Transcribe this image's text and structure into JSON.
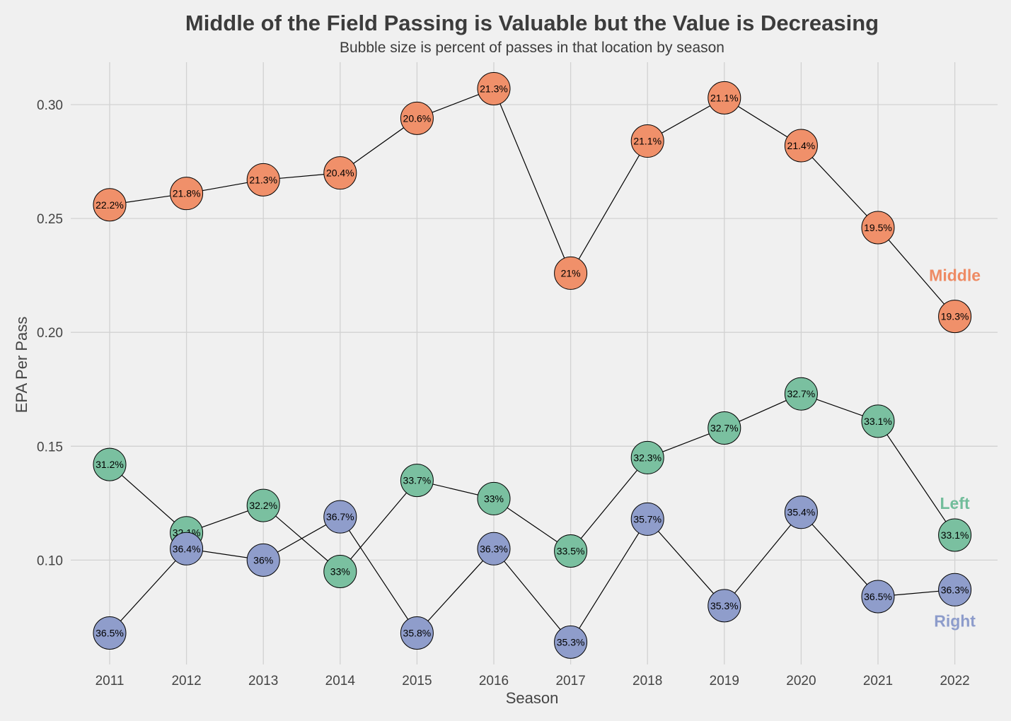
{
  "chart_data": {
    "type": "scatter",
    "title": "Middle of the Field Passing is Valuable but the Value is Decreasing",
    "subtitle": "Bubble size is percent of passes in that location by season",
    "xlabel": "Season",
    "ylabel": "EPA Per Pass",
    "ylim": [
      0.055,
      0.32
    ],
    "grid": true,
    "categories": [
      "2011",
      "2012",
      "2013",
      "2014",
      "2015",
      "2016",
      "2017",
      "2018",
      "2019",
      "2020",
      "2021",
      "2022"
    ],
    "y_ticks": [
      0.1,
      0.15,
      0.2,
      0.25,
      0.3
    ],
    "y_tick_labels": [
      "0.10",
      "0.15",
      "0.20",
      "0.25",
      "0.30"
    ],
    "series": [
      {
        "name": "Middle",
        "color": "#f0906a",
        "label_color": "#ee8a63",
        "values": [
          0.256,
          0.261,
          0.267,
          0.27,
          0.294,
          0.307,
          0.226,
          0.284,
          0.303,
          0.282,
          0.246,
          0.207
        ],
        "labels": [
          "22.2%",
          "21.8%",
          "21.3%",
          "20.4%",
          "20.6%",
          "21.3%",
          "21%",
          "21.1%",
          "21.1%",
          "21.4%",
          "19.5%",
          "19.3%"
        ]
      },
      {
        "name": "Left",
        "color": "#7ac0a0",
        "label_color": "#72bd9b",
        "values": [
          0.142,
          0.112,
          0.124,
          0.095,
          0.135,
          0.127,
          0.104,
          0.145,
          0.158,
          0.173,
          0.161,
          0.111
        ],
        "labels": [
          "31.2%",
          "32.1%",
          "32.2%",
          "33%",
          "33.7%",
          "33%",
          "33.5%",
          "32.3%",
          "32.7%",
          "32.7%",
          "33.1%",
          "33.1%"
        ]
      },
      {
        "name": "Right",
        "color": "#8f9dcb",
        "label_color": "#8d9ccb",
        "values": [
          0.068,
          0.105,
          0.1,
          0.119,
          0.068,
          0.105,
          0.064,
          0.118,
          0.08,
          0.121,
          0.084,
          0.087
        ],
        "labels": [
          "36.5%",
          "36.4%",
          "36%",
          "36.7%",
          "35.8%",
          "36.3%",
          "35.3%",
          "35.7%",
          "35.3%",
          "35.4%",
          "36.5%",
          "36.3%"
        ]
      }
    ]
  }
}
